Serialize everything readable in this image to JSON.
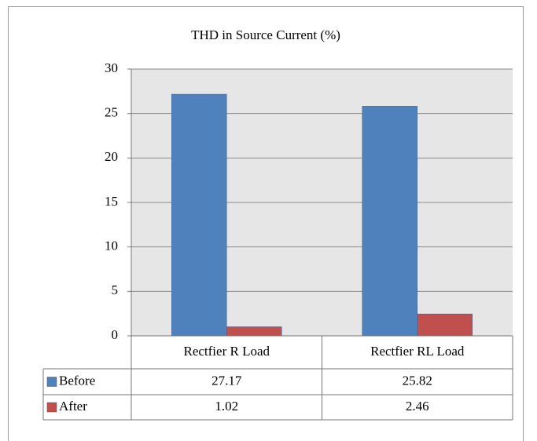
{
  "chart_data": {
    "type": "bar",
    "title": "THD in Source Current (%)",
    "categories": [
      "Rectfier R Load",
      "Rectfier RL Load"
    ],
    "series": [
      {
        "name": "Before",
        "color": "#4f81bd",
        "values": [
          27.17,
          25.82
        ]
      },
      {
        "name": "After",
        "color": "#c0504d",
        "values": [
          1.02,
          2.46
        ]
      }
    ],
    "ylim": [
      0,
      30
    ],
    "yticks": [
      0,
      5,
      10,
      15,
      20,
      25,
      30
    ],
    "grid": true
  }
}
